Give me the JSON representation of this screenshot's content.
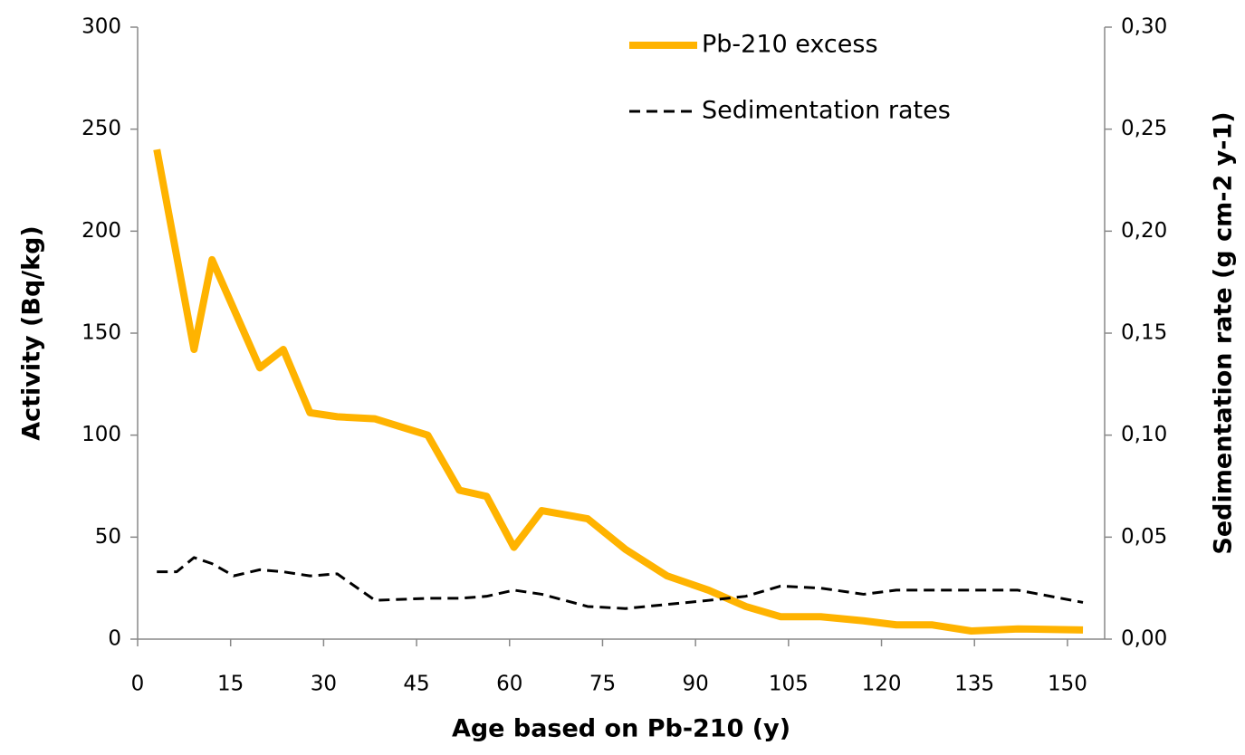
{
  "chart_data": {
    "type": "line",
    "x_label": "Age based on Pb-210 (y)",
    "y_label": "Activity (Bq/kg)",
    "y2_label": "Sedimentation rate (g cm-2 y-1)",
    "xlim": [
      0,
      156
    ],
    "xticks": [
      0,
      15,
      30,
      45,
      60,
      75,
      90,
      105,
      120,
      135,
      150
    ],
    "ylim": [
      0,
      300
    ],
    "yticks": [
      0,
      50,
      100,
      150,
      200,
      250,
      300
    ],
    "y2lim": [
      0,
      0.3
    ],
    "y2ticks": [
      {
        "value": 0,
        "label": "0,00"
      },
      {
        "value": 0.05,
        "label": "0,05"
      },
      {
        "value": 0.1,
        "label": "0,10"
      },
      {
        "value": 0.15,
        "label": "0,15"
      },
      {
        "value": 0.2,
        "label": "0,20"
      },
      {
        "value": 0.25,
        "label": "0,25"
      },
      {
        "value": 0.3,
        "label": "0,30"
      }
    ],
    "legend": "top",
    "series": [
      {
        "name": "Pb-210 excess",
        "color": "#ffb300",
        "dash": "solid",
        "width": 8,
        "x": [
          3.1,
          9.1,
          12,
          19.7,
          23.5,
          27.8,
          32.2,
          38.3,
          46.8,
          51.9,
          56.3,
          60.7,
          65.2,
          72.6,
          78.7,
          85.4,
          92.1,
          98.1,
          103.7,
          110.2,
          117.1,
          122.4,
          128.1,
          134.5,
          142,
          152.5
        ],
        "values": [
          240,
          142,
          186,
          133,
          142,
          111,
          109,
          108,
          100,
          73,
          70,
          45,
          63,
          59,
          44,
          31,
          24,
          16,
          11,
          11,
          9,
          7,
          7,
          4,
          5,
          4.5
        ]
      },
      {
        "name": "Sedimentation rates",
        "color": "#000000",
        "dash": "dashed",
        "width": 3,
        "axis": "y2",
        "x": [
          3.1,
          6.3,
          9.1,
          12,
          15.5,
          19.7,
          23.5,
          27.8,
          32.2,
          38.3,
          46.8,
          51.9,
          56.3,
          60.7,
          65.2,
          72.6,
          78.7,
          85.4,
          92.1,
          98.1,
          103.7,
          110.2,
          117.1,
          122.4,
          128.1,
          134.5,
          142,
          152.5
        ],
        "values": [
          0.033,
          0.033,
          0.04,
          0.037,
          0.031,
          0.034,
          0.033,
          0.031,
          0.032,
          0.019,
          0.02,
          0.02,
          0.021,
          0.024,
          0.022,
          0.016,
          0.015,
          0.017,
          0.019,
          0.021,
          0.026,
          0.025,
          0.022,
          0.024,
          0.024,
          0.024,
          0.024,
          0.018
        ]
      }
    ]
  }
}
